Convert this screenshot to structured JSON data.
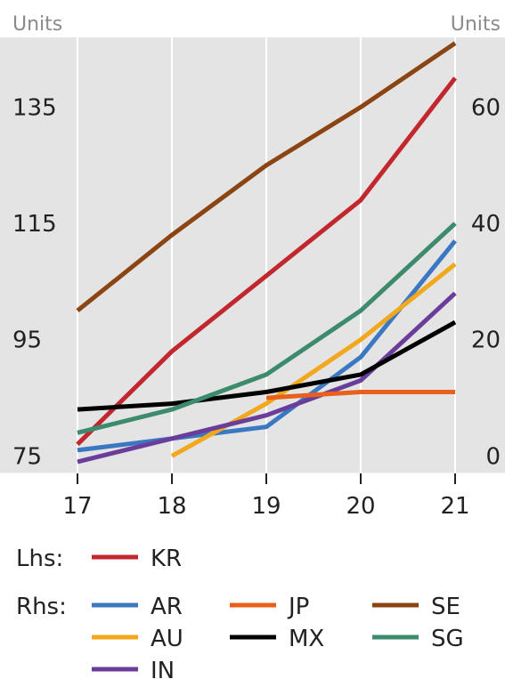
{
  "chart_data": {
    "type": "line",
    "left_axis": {
      "label": "Units",
      "ticks": [
        75,
        95,
        115,
        135
      ],
      "range": [
        72,
        147
      ]
    },
    "right_axis": {
      "label": "Units",
      "ticks": [
        0,
        20,
        40,
        60
      ],
      "range": [
        -3,
        72
      ]
    },
    "x": [
      "17",
      "18",
      "19",
      "20",
      "21"
    ],
    "grid": "vertical",
    "legend": {
      "lhs_label": "Lhs:",
      "rhs_label": "Rhs:"
    },
    "series": [
      {
        "name": "KR",
        "axis": "left",
        "color": "#c1272d",
        "values": [
          77,
          93,
          106,
          119,
          140
        ]
      },
      {
        "name": "AR",
        "axis": "right",
        "color": "#3a78c2",
        "values": [
          1,
          3,
          5,
          17,
          37
        ]
      },
      {
        "name": "AU",
        "axis": "right",
        "color": "#f2a81d",
        "values": [
          null,
          0,
          9,
          20,
          33
        ]
      },
      {
        "name": "IN",
        "axis": "right",
        "color": "#6a3d9a",
        "values": [
          -1,
          3,
          7,
          13,
          28
        ]
      },
      {
        "name": "JP",
        "axis": "right",
        "color": "#e8601c",
        "values": [
          null,
          null,
          10,
          11,
          11
        ]
      },
      {
        "name": "MX",
        "axis": "right",
        "color": "#000000",
        "values": [
          8,
          9,
          11,
          14,
          23
        ]
      },
      {
        "name": "SE",
        "axis": "right",
        "color": "#8b4513",
        "values": [
          25,
          38,
          50,
          60,
          71
        ]
      },
      {
        "name": "SG",
        "axis": "right",
        "color": "#3d8b6d",
        "values": [
          4,
          8,
          14,
          25,
          40
        ]
      }
    ]
  }
}
